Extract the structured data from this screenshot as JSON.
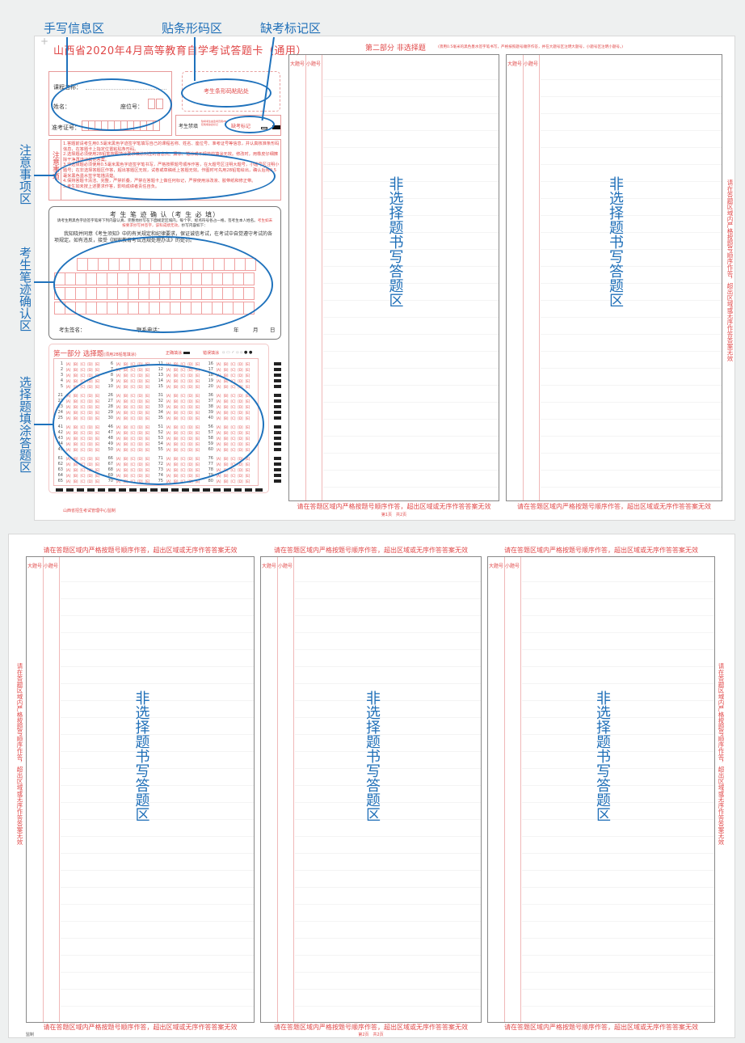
{
  "annotations": {
    "handwriting_info": "手写信息区",
    "barcode": "贴条形码区",
    "absent_mark": "缺考标记区",
    "notes": "注意事项区",
    "handwriting_confirm": "考生笔迹确认区",
    "choice": "选择题填涂答题区",
    "nonchoice": "非选择题书写答题区",
    "color": "#1f6fb8"
  },
  "page1": {
    "title": "山西省2020年4月高等教育自学考试答题卡（通用）",
    "info": {
      "course": "课程名称：",
      "name": "姓名：",
      "seat": "座位号：",
      "exam_no": "准考证号："
    },
    "barcode_label": "考生条形码粘贴处",
    "absent": {
      "forbidden": "考生禁填",
      "mark": "缺考标记",
      "hint": "缺考考生由监考员用2B铅笔填涂此标记"
    },
    "notes": {
      "title": "注意事项",
      "items": [
        "1.答题前请考生用0.5毫米黑色字迹签字笔填写自己的课程名称、姓名、座位号、准考证号等信息，并认真核准条形码信息，在答题卡上指定位置粘贴条形码。",
        "2.选择题必须使用2B铅笔按照填涂要求填涂对应的信息点。漏涂、错涂或不规范的填涂无效。修改时，用橡皮仔细擦除干净再选涂其他答案。",
        "3.非选择题必须使用0.5毫米黑色字迹签字笔书写，严格按照题号顺序作答，在大题号区注明大题号，小题号区注明小题号；在非选择答题区作答，超出答题区无效，试卷或草稿纸上答题无效。作图时可先用2B铅笔绘出，确认后用0.5毫米黑色墨水签字笔描清楚。",
        "4.保持答题卡清洁、完整，严禁折叠，严禁在答题卡上做任何标记，严禁使用涂改液、胶带纸和修正带。",
        "5.考生如未按上述要求作答，影响成绩者责任自负。"
      ]
    },
    "handwriting": {
      "title": "考 生 笔 迹 确 认（考 生 必 填）",
      "instruction": "请考生用黑色字迹签字笔将下列内容认真、完整地抄写在下面规定区域内，每个字、标点符号各占一格，签考生本人姓名。",
      "warning": "考生如未按要求抄写并签字，该科成绩无效。",
      "instruction_end": "抄写内容如下：",
      "passage": "我知晓并同意《考生须知》中的有关规定和纪律要求，保证诚信考试，在考试中自觉遵守考试的各项规定。如有违反，接受《国家教育考试违规处理办法》的处罚。",
      "signature": "考生签名：",
      "phone": "联系电话：",
      "year": "年",
      "month": "月",
      "day": "日"
    },
    "choice": {
      "title": "第一部分 选择题",
      "subtitle": "(须用2B铅笔填涂)",
      "correct": "正确填涂",
      "wrong": "错误填涂",
      "options": [
        "A",
        "B",
        "C",
        "D",
        "E"
      ],
      "groups": [
        [
          [
            1,
            6,
            11,
            16
          ],
          [
            2,
            7,
            12,
            17
          ],
          [
            3,
            8,
            13,
            18
          ],
          [
            4,
            9,
            14,
            19
          ],
          [
            5,
            10,
            15,
            20
          ]
        ],
        [
          [
            21,
            26,
            31,
            36
          ],
          [
            22,
            27,
            32,
            37
          ],
          [
            23,
            28,
            33,
            38
          ],
          [
            24,
            29,
            34,
            39
          ],
          [
            25,
            30,
            35,
            40
          ]
        ],
        [
          [
            41,
            46,
            51,
            56
          ],
          [
            42,
            47,
            52,
            57
          ],
          [
            43,
            48,
            53,
            58
          ],
          [
            44,
            49,
            54,
            59
          ],
          [
            45,
            50,
            55,
            60
          ]
        ],
        [
          [
            61,
            66,
            71,
            76
          ],
          [
            62,
            67,
            72,
            77
          ],
          [
            63,
            68,
            73,
            78
          ],
          [
            64,
            69,
            74,
            79
          ],
          [
            65,
            70,
            75,
            80
          ]
        ]
      ]
    },
    "supervisor": "山西省招生考试管理中心监制",
    "part2_title": "第二部分 非选择题",
    "part2_note": "(须用0.5毫米的黑色墨水签字笔书写，严格按照题号顺序作答，并在大题号区注明大题号，小题号区注明小题号。)",
    "col_major": "大题号",
    "col_minor": "小题号",
    "footer": "请在答题区域内严格按题号顺序作答，超出区域或无序作答答案无效",
    "side_text": "请在答题区域内严格按题号顺序作答，超出区域或无序作答答案无效",
    "page_no": "第1页　共2页"
  },
  "page2": {
    "header": "请在答题区域内严格按题号顺序作答，超出区域或无序作答答案无效",
    "footer": "请在答题区域内严格按题号顺序作答，超出区域或无序作答答案无效",
    "side_text": "请在答题区域内严格按题号顺序作答，超出区域或无序作答答案无效",
    "col_major": "大题号",
    "col_minor": "小题号",
    "page_no": "第2页　共2页",
    "supervisor": "监制"
  },
  "colors": {
    "form_red": "#e04848",
    "annotation_blue": "#1f6fb8"
  }
}
